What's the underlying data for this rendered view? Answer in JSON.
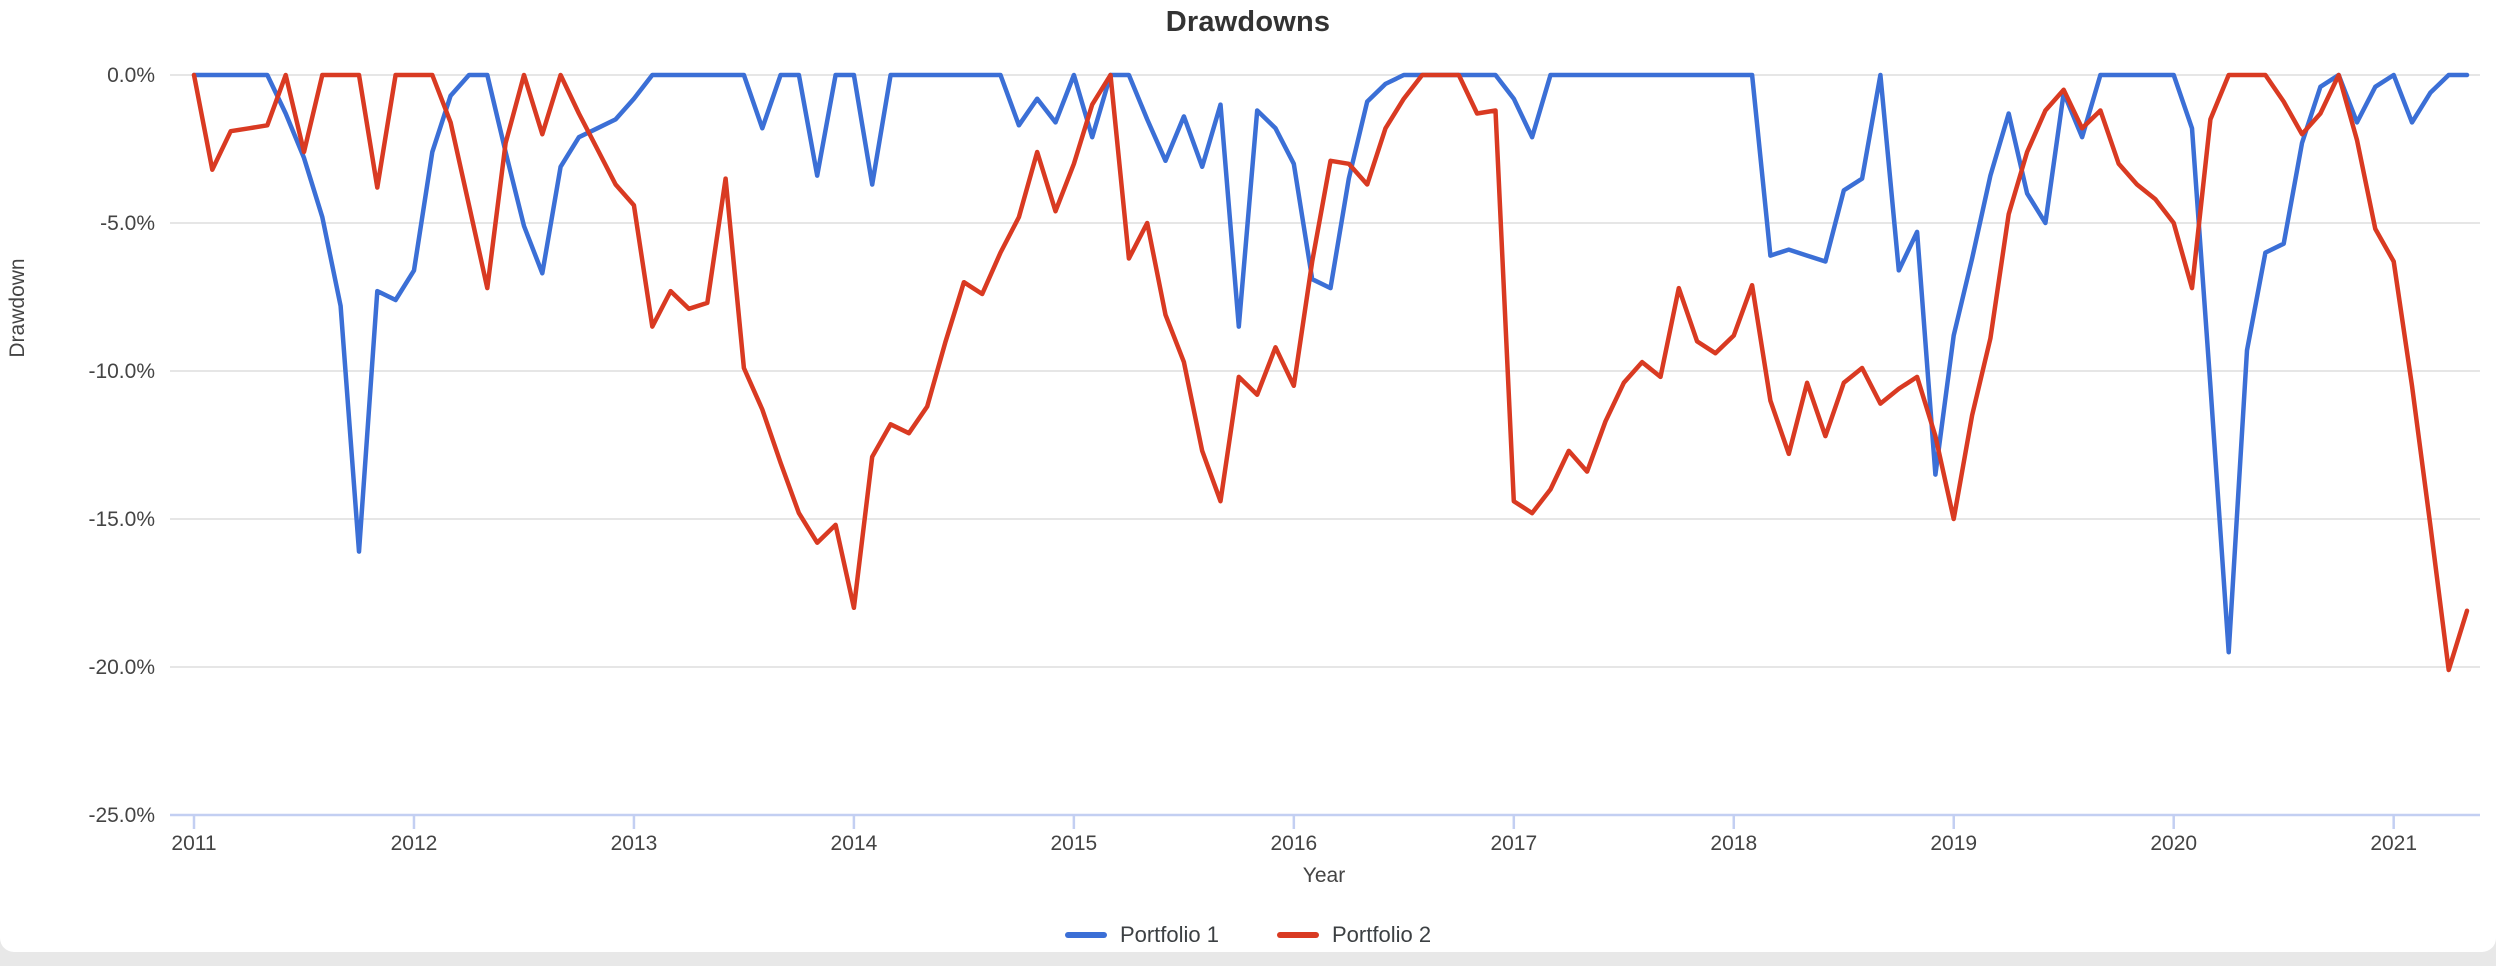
{
  "title": "Drawdowns",
  "chart_data": {
    "type": "line",
    "frequency": "monthly",
    "x_start": "2011-01",
    "x_end": "2021-05",
    "xlabel": "Year",
    "ylabel": "Drawdown",
    "ylim": [
      -25,
      0
    ],
    "grid": "horizontal-only",
    "legend_position": "bottom-center",
    "x_axis": {
      "tick_labels": [
        "2011",
        "2012",
        "2013",
        "2014",
        "2015",
        "2016",
        "2017",
        "2018",
        "2019",
        "2020",
        "2021"
      ]
    },
    "y_axis": {
      "tick_values": [
        0,
        -5,
        -10,
        -15,
        -20,
        -25
      ],
      "tick_labels": [
        "0.0%",
        "-5.0%",
        "-10.0%",
        "-15.0%",
        "-20.0%",
        "-25.0%"
      ]
    },
    "series": [
      {
        "name": "Portfolio 1",
        "color": "#3b6fd6",
        "values": [
          0,
          0,
          0,
          0,
          0,
          -1.3,
          -2.8,
          -4.8,
          -7.8,
          -16.1,
          -7.3,
          -7.6,
          -6.6,
          -2.6,
          -0.7,
          0,
          0,
          -2.6,
          -5.1,
          -6.7,
          -3.1,
          -2.1,
          -1.8,
          -1.5,
          -0.8,
          0,
          0,
          0,
          0,
          0,
          0,
          -1.8,
          0,
          0,
          -3.4,
          0,
          0,
          -3.7,
          0,
          0,
          0,
          0,
          0,
          0,
          0,
          -1.7,
          -0.8,
          -1.6,
          0,
          -2.1,
          0,
          0,
          -1.5,
          -2.9,
          -1.4,
          -3.1,
          -1.0,
          -8.5,
          -1.2,
          -1.8,
          -3.0,
          -6.9,
          -7.2,
          -3.5,
          -0.9,
          -0.3,
          0,
          0,
          0,
          0,
          0,
          0,
          -0.8,
          -2.1,
          0,
          0,
          0,
          0,
          0,
          0,
          0,
          0,
          0,
          0,
          0,
          0,
          -6.1,
          -5.9,
          -6.1,
          -6.3,
          -3.9,
          -3.5,
          0,
          -6.6,
          -5.3,
          -13.5,
          -8.8,
          -6.2,
          -3.4,
          -1.3,
          -4.0,
          -5.0,
          -0.6,
          -2.1,
          0,
          0,
          0,
          0,
          0,
          -1.8,
          -10.5,
          -19.5,
          -9.3,
          -6.0,
          -5.7,
          -2.3,
          -0.4,
          0,
          -1.6,
          -0.4,
          0,
          -1.6,
          -0.6,
          0,
          0
        ]
      },
      {
        "name": "Portfolio 2",
        "color": "#d93a22",
        "values": [
          0,
          -3.2,
          -1.9,
          -1.8,
          -1.7,
          0,
          -2.6,
          0,
          0,
          0,
          -3.8,
          0,
          0,
          0,
          -1.6,
          -4.4,
          -7.2,
          -2.3,
          0,
          -2.0,
          0,
          -1.3,
          -2.5,
          -3.7,
          -4.4,
          -8.5,
          -7.3,
          -7.9,
          -7.7,
          -3.5,
          -9.9,
          -11.3,
          -13.1,
          -14.8,
          -15.8,
          -15.2,
          -18.0,
          -12.9,
          -11.8,
          -12.1,
          -11.2,
          -9.0,
          -7.0,
          -7.4,
          -6.0,
          -4.8,
          -2.6,
          -4.6,
          -3.0,
          -1.0,
          0,
          -6.2,
          -5.0,
          -8.1,
          -9.7,
          -12.7,
          -14.4,
          -10.2,
          -10.8,
          -9.2,
          -10.5,
          -6.3,
          -2.9,
          -3.0,
          -3.7,
          -1.8,
          -0.8,
          0,
          0,
          0,
          -1.3,
          -1.2,
          -14.4,
          -14.8,
          -14.0,
          -12.7,
          -13.4,
          -11.7,
          -10.4,
          -9.7,
          -10.2,
          -7.2,
          -9.0,
          -9.4,
          -8.8,
          -7.1,
          -11.0,
          -12.8,
          -10.4,
          -12.2,
          -10.4,
          -9.9,
          -11.1,
          -10.6,
          -10.2,
          -12.2,
          -15.0,
          -11.5,
          -8.9,
          -4.7,
          -2.6,
          -1.2,
          -0.5,
          -1.8,
          -1.2,
          -3.0,
          -3.7,
          -4.2,
          -5.0,
          -7.2,
          -1.5,
          0,
          0,
          0,
          -0.9,
          -2.0,
          -1.3,
          0,
          -2.2,
          -5.2,
          -6.3,
          -10.5,
          -15.2,
          -20.1,
          -18.1
        ]
      }
    ],
    "colors": {
      "gridline": "#e6e6e6",
      "axis_baseline": "#c3cff2",
      "tick_text": "#444444",
      "title_text": "#333333"
    }
  }
}
